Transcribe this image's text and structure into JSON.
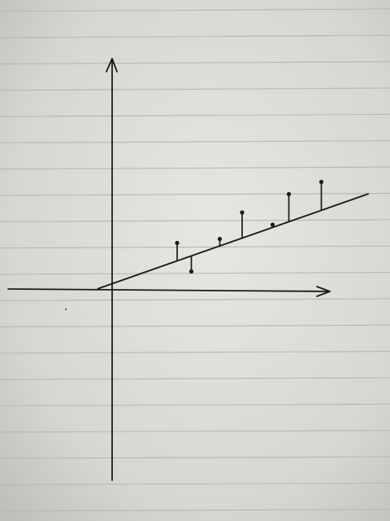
{
  "scene": {
    "subject": "hand-drawn-regression-sketch",
    "medium": "pen-on-ruled-notebook-paper",
    "colors": {
      "paper_light": "#e4e4e1",
      "paper_shadow": "#bdbdba",
      "ruling": "#b3b8bc",
      "ink": "#1b1b1b"
    }
  },
  "chart_data": {
    "type": "scatter",
    "title": "",
    "xlabel": "",
    "ylabel": "",
    "xlim": [
      -1.2,
      10.5
    ],
    "ylim": [
      -8.5,
      10.5
    ],
    "grid": false,
    "fit_line": {
      "slope": 0.35,
      "intercept": 0.3,
      "x_start": -0.7,
      "x_end": 12.6
    },
    "series": [
      {
        "points": [
          {
            "x": 3.2,
            "y": 2.3
          },
          {
            "x": 3.9,
            "y": 0.9
          },
          {
            "x": 5.3,
            "y": 2.5
          },
          {
            "x": 6.4,
            "y": 3.8
          },
          {
            "x": 7.9,
            "y": 3.2
          },
          {
            "x": 8.7,
            "y": 4.7
          },
          {
            "x": 10.3,
            "y": 5.3
          }
        ]
      }
    ]
  }
}
